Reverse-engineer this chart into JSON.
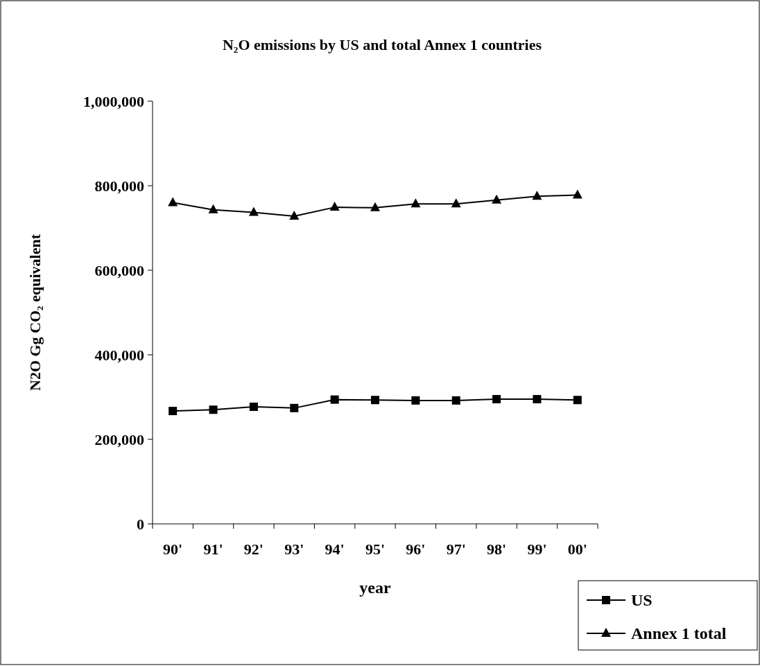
{
  "chart_data": {
    "type": "line",
    "title": "N₂O emissions by US and total Annex 1 countries",
    "xlabel": "year",
    "ylabel": "N2O Gg CO₂ equivalent",
    "categories": [
      "90'",
      "91'",
      "92'",
      "93'",
      "94'",
      "95'",
      "96'",
      "97'",
      "98'",
      "99'",
      "00'"
    ],
    "series": [
      {
        "name": "US",
        "color": "#000000",
        "marker": "square",
        "values": [
          267000,
          270000,
          277000,
          274000,
          294000,
          293000,
          292000,
          292000,
          295000,
          295000,
          293000
        ]
      },
      {
        "name": "Annex 1 total",
        "color": "#000000",
        "marker": "triangle",
        "values": [
          760000,
          743000,
          737000,
          728000,
          749000,
          748000,
          757000,
          757000,
          766000,
          775000,
          778000
        ]
      }
    ],
    "ylim": [
      0,
      1000000
    ],
    "yticks": [
      {
        "value": 0,
        "label": "0"
      },
      {
        "value": 200000,
        "label": "200,000"
      },
      {
        "value": 400000,
        "label": "400,000"
      },
      {
        "value": 600000,
        "label": "600,000"
      },
      {
        "value": 800000,
        "label": "800,000"
      },
      {
        "value": 1000000,
        "label": "1,000,000"
      }
    ],
    "grid": false,
    "legend": "bottom right",
    "line_style": "solid"
  }
}
